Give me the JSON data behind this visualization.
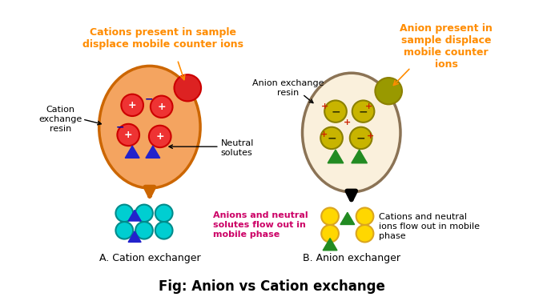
{
  "title": "Fig: Anion vs Cation exchange",
  "bg_color": "#ffffff",
  "orange_color": "#FF8C00",
  "label_A": "A. Cation exchanger",
  "label_B": "B. Anion exchanger",
  "cation_title": "Cations present in sample\ndisplace mobile counter ions",
  "anion_title": "Anion present in\nsample displace\nmobile counter\nions",
  "cation_resin_label": "Cation\nexchange\nresin",
  "anion_resin_label": "Anion exchange\nresin",
  "neutral_solutes_label": "Neutral\nsolutes",
  "anion_flow_label": "Anions and neutral\nsolutes flow out in\nmobile phase",
  "cation_flow_label": "Cations and neutral\nions flow out in mobile\nphase",
  "ellipse_A_color": "#F4A460",
  "ellipse_A_edge": "#CC6600",
  "ellipse_B_color": "#FAF0DC",
  "ellipse_B_edge": "#8B7355",
  "red_circle_color": "#EE3333",
  "red_circle_edge": "#CC0000",
  "olive_circle_color": "#C8B400",
  "olive_circle_edge": "#8B8000",
  "sample_red_color": "#DD2222",
  "sample_olive_color": "#999900",
  "cyan_color": "#00CED1",
  "cyan_edge": "#008B8B",
  "yellow_color": "#FFD700",
  "yellow_edge": "#DAA520",
  "green_tri_color": "#228B22",
  "blue_tri_color": "#2222CC",
  "orange_arrow": "#CC6600",
  "magenta_text": "#CC0066"
}
